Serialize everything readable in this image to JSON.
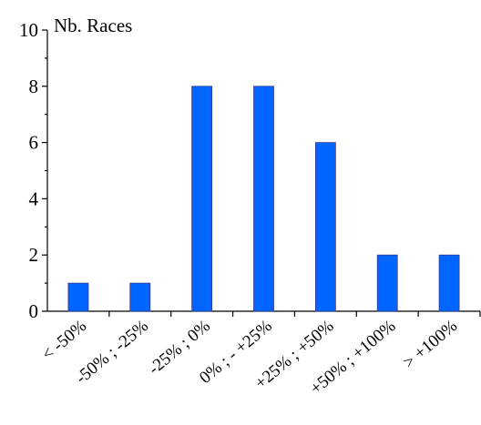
{
  "chart_data": {
    "type": "bar",
    "title": "",
    "xlabel": "",
    "ylabel": "Nb. Races",
    "ylim": [
      0,
      10
    ],
    "yticks": [
      0,
      2,
      4,
      6,
      8,
      10
    ],
    "grid": false,
    "legend": "none",
    "bar_color": "#0066ff",
    "categories": [
      "< -50%",
      "-50% ; -25%",
      "-25% ; 0%",
      "0% ; - +25%",
      "+25% ; +50%",
      "+50% ; +100%",
      "> +100%"
    ],
    "values": [
      1,
      1,
      8,
      8,
      6,
      2,
      2
    ]
  }
}
